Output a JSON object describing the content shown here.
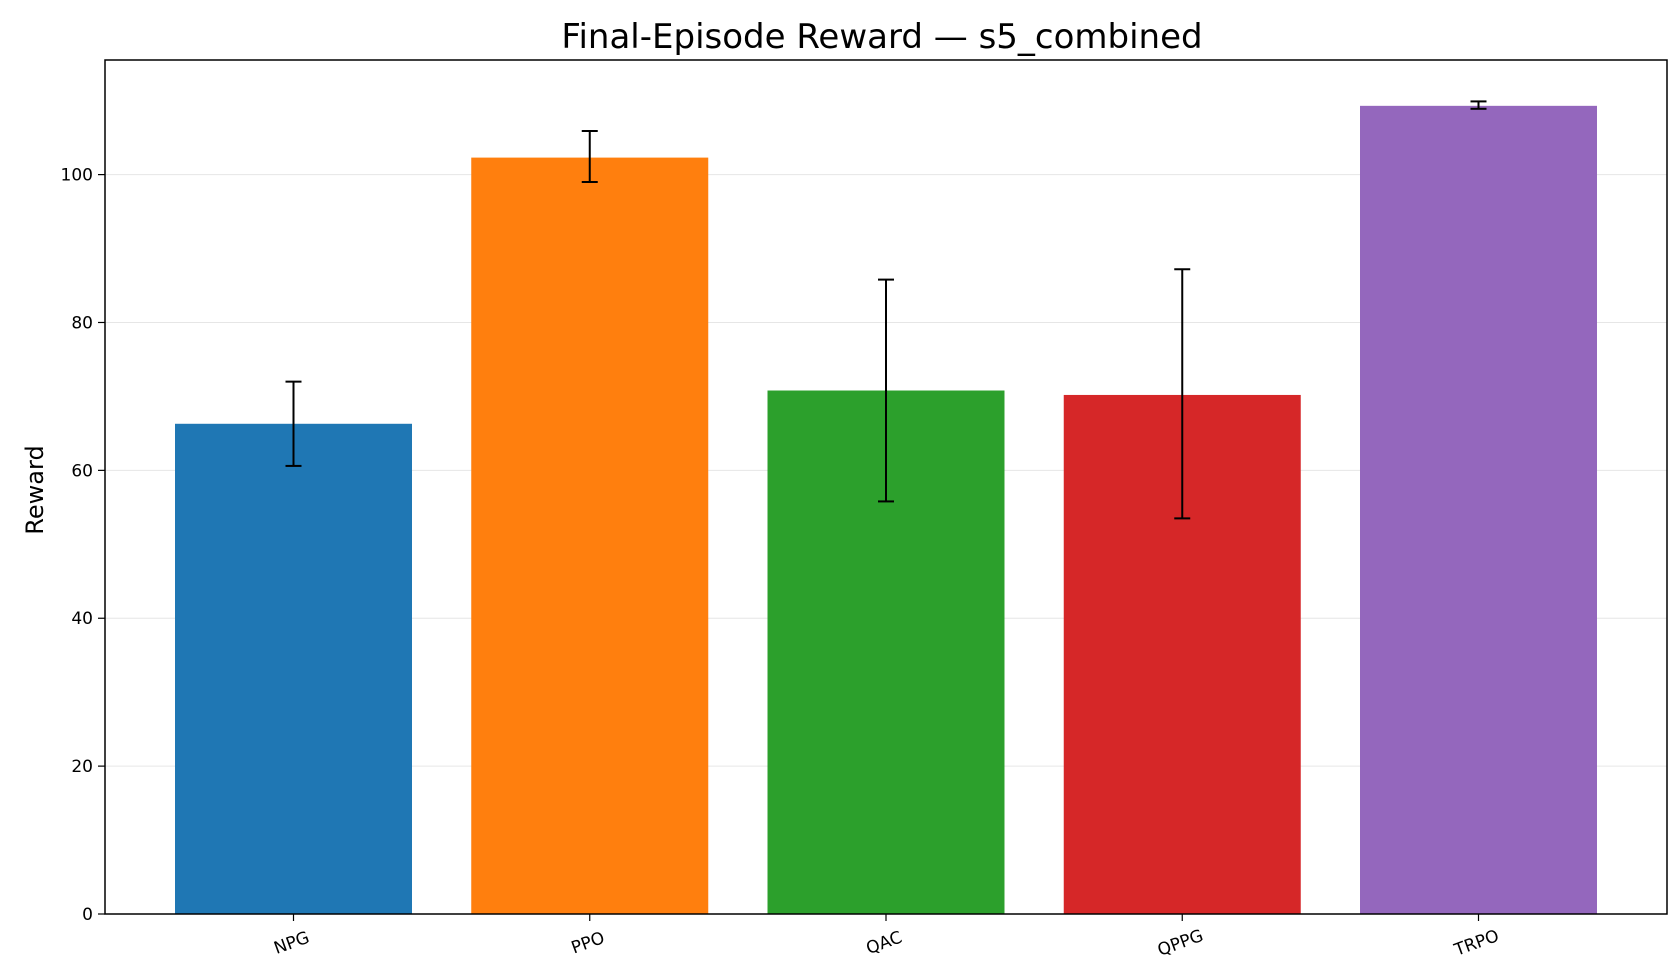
{
  "chart_data": {
    "type": "bar",
    "title": "Final-Episode Reward — s5_combined",
    "xlabel": "",
    "ylabel": "Reward",
    "ylim": [
      0,
      115.5
    ],
    "yticks": [
      0,
      20,
      40,
      60,
      80,
      100
    ],
    "grid": "y",
    "categories": [
      "NPG",
      "PPO",
      "QAC",
      "QPPG",
      "TRPO"
    ],
    "values": [
      66.3,
      102.3,
      70.8,
      70.2,
      109.3
    ],
    "error_low": [
      60.6,
      99.0,
      55.8,
      53.5,
      108.9
    ],
    "error_high": [
      72.0,
      105.9,
      85.8,
      87.2,
      109.9
    ],
    "colors": [
      "#1f77b4",
      "#ff7f0e",
      "#2ca02c",
      "#d62728",
      "#9467bd"
    ]
  }
}
